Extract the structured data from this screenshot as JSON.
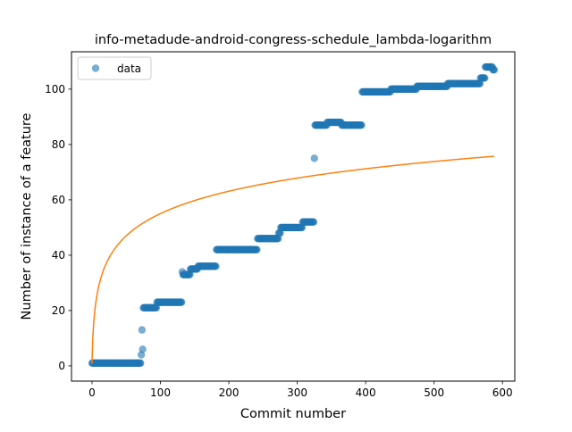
{
  "chart_data": {
    "type": "scatter",
    "title": "info-metadude-android-congress-schedule_lambda-logarithm",
    "xlabel": "Commit number",
    "ylabel": "Number of instance of a feature",
    "xlim": [
      -30,
      618
    ],
    "ylim": [
      -5.5,
      113.5
    ],
    "xticks": [
      0,
      100,
      200,
      300,
      400,
      500,
      600
    ],
    "yticks": [
      0,
      20,
      40,
      60,
      80,
      100
    ],
    "grid": false,
    "legend": {
      "placement": "top-left",
      "entries": [
        {
          "label": "data",
          "series": "data"
        }
      ]
    },
    "series": [
      {
        "name": "data",
        "kind": "scatter",
        "color": "#1f77b4",
        "alpha": 0.6,
        "runs": [
          {
            "x_start": 0,
            "x_end": 71,
            "y": 1
          },
          {
            "x_start": 72,
            "x_end": 72,
            "y": 4
          },
          {
            "x_start": 73,
            "x_end": 73,
            "y": 13
          },
          {
            "x_start": 74,
            "x_end": 74,
            "y": 6
          },
          {
            "x_start": 75,
            "x_end": 94,
            "y": 21
          },
          {
            "x_start": 95,
            "x_end": 131,
            "y": 23
          },
          {
            "x_start": 132,
            "x_end": 132,
            "y": 34
          },
          {
            "x_start": 133,
            "x_end": 143,
            "y": 33
          },
          {
            "x_start": 144,
            "x_end": 154,
            "y": 35
          },
          {
            "x_start": 155,
            "x_end": 181,
            "y": 36
          },
          {
            "x_start": 182,
            "x_end": 241,
            "y": 42
          },
          {
            "x_start": 242,
            "x_end": 272,
            "y": 46
          },
          {
            "x_start": 273,
            "x_end": 275,
            "y": 48
          },
          {
            "x_start": 276,
            "x_end": 307,
            "y": 50
          },
          {
            "x_start": 308,
            "x_end": 324,
            "y": 52
          },
          {
            "x_start": 325,
            "x_end": 325,
            "y": 75
          },
          {
            "x_start": 326,
            "x_end": 343,
            "y": 87
          },
          {
            "x_start": 344,
            "x_end": 364,
            "y": 88
          },
          {
            "x_start": 365,
            "x_end": 394,
            "y": 87
          },
          {
            "x_start": 395,
            "x_end": 436,
            "y": 99
          },
          {
            "x_start": 437,
            "x_end": 474,
            "y": 100
          },
          {
            "x_start": 475,
            "x_end": 519,
            "y": 101
          },
          {
            "x_start": 520,
            "x_end": 567,
            "y": 102
          },
          {
            "x_start": 568,
            "x_end": 574,
            "y": 104
          },
          {
            "x_start": 575,
            "x_end": 585,
            "y": 108
          },
          {
            "x_start": 586,
            "x_end": 588,
            "y": 107
          }
        ]
      },
      {
        "name": "",
        "kind": "line",
        "color": "#ff7f0e",
        "function": {
          "form": "a + b*ln(x+1)",
          "a": 0.8,
          "b": 11.75,
          "x_start": 0,
          "x_end": 588
        }
      }
    ]
  }
}
